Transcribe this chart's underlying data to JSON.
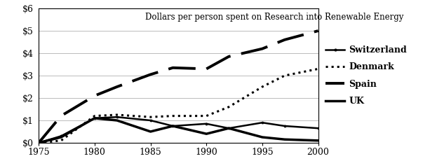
{
  "title": "Dollars per person spent on Research into Renewable Energy",
  "years": [
    1975,
    1977,
    1980,
    1982,
    1985,
    1987,
    1990,
    1992,
    1995,
    1997,
    2000
  ],
  "switzerland": [
    0,
    0.3,
    1.1,
    1.15,
    1.0,
    0.75,
    0.85,
    0.65,
    0.9,
    0.75,
    0.65
  ],
  "denmark": [
    0,
    0.1,
    1.2,
    1.25,
    1.15,
    1.2,
    1.2,
    1.6,
    2.5,
    3.0,
    3.3
  ],
  "spain": [
    0,
    1.2,
    2.1,
    2.5,
    3.05,
    3.35,
    3.3,
    3.85,
    4.2,
    4.6,
    5.0
  ],
  "uk": [
    0,
    0.25,
    1.1,
    1.0,
    0.5,
    0.75,
    0.4,
    0.65,
    0.25,
    0.15,
    0.1
  ],
  "xlim": [
    1975,
    2000
  ],
  "ylim": [
    0,
    6
  ],
  "yticks": [
    0,
    1,
    2,
    3,
    4,
    5,
    6
  ],
  "ytick_labels": [
    "$0",
    "$1",
    "$2",
    "$3",
    "$4",
    "$5",
    "$6"
  ],
  "xticks": [
    1975,
    1980,
    1985,
    1990,
    1995,
    2000
  ],
  "legend_labels": [
    "Switzerland",
    "Denmark",
    "Spain",
    "UK"
  ],
  "line_color": "#000000",
  "bg_color": "#ffffff",
  "grid_color": "#bbbbbb",
  "figsize": [
    6.13,
    2.4
  ],
  "dpi": 100
}
